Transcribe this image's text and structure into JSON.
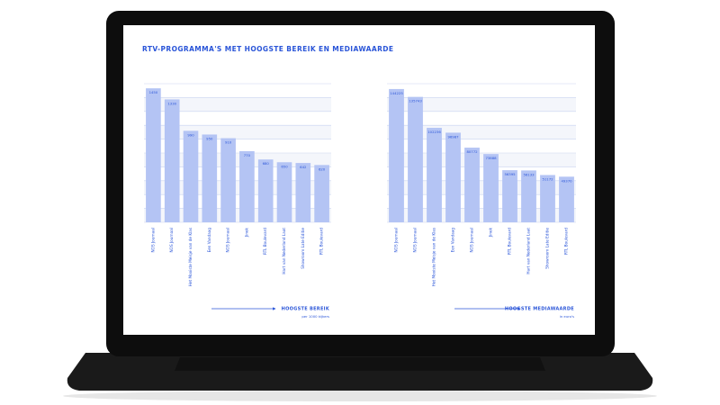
{
  "title": "RTV-PROGRAMMA'S MET HOOGSTE BEREIK EN MEDIAWAARDE",
  "chart_data": [
    {
      "type": "bar",
      "categories": [
        "NOS Journaal",
        "NOS Journaal",
        "Het Mooiste Meisje van de Klas",
        "Een Vandaag",
        "NOS Journaal",
        "Jinek",
        "RTL Boulevard",
        "Hart van Nederland Laat",
        "Showroom Late Editie",
        "RTL Boulevard"
      ],
      "values": [
        1450,
        1330,
        990,
        950,
        910,
        770,
        680,
        650,
        642,
        620
      ],
      "color": "#b4c4f4",
      "ylim": [
        0,
        1500
      ],
      "yticks": [
        0,
        150,
        300,
        450,
        600,
        750,
        900,
        1050,
        1200,
        1350,
        1500
      ],
      "grid": true,
      "x_label": "HOOGSTE BEREIK",
      "unit_label": "per 1000 kijkers"
    },
    {
      "type": "bar",
      "categories": [
        "NOS Journaal",
        "NOS Journaal",
        "Het Mooiste Meisje van de Klas",
        "Een Vandaag",
        "NOS Journaal",
        "Jinek",
        "RTL Boulevard",
        "Hart van Nederland Laat",
        "Showroom Late Editie",
        "RTL Boulevard"
      ],
      "values": [
        144225,
        135743,
        102236,
        96987,
        80772,
        73888,
        56395,
        56133,
        51172,
        49370
      ],
      "color": "#b4c4f4",
      "ylim": [
        0,
        150000
      ],
      "yticks": [
        0,
        15000,
        30000,
        45000,
        60000,
        75000,
        90000,
        105000,
        120000,
        135000,
        150000
      ],
      "grid": true,
      "x_label": "HOOGSTE MEDIAWAARDE",
      "unit_label": "in euro's"
    }
  ]
}
